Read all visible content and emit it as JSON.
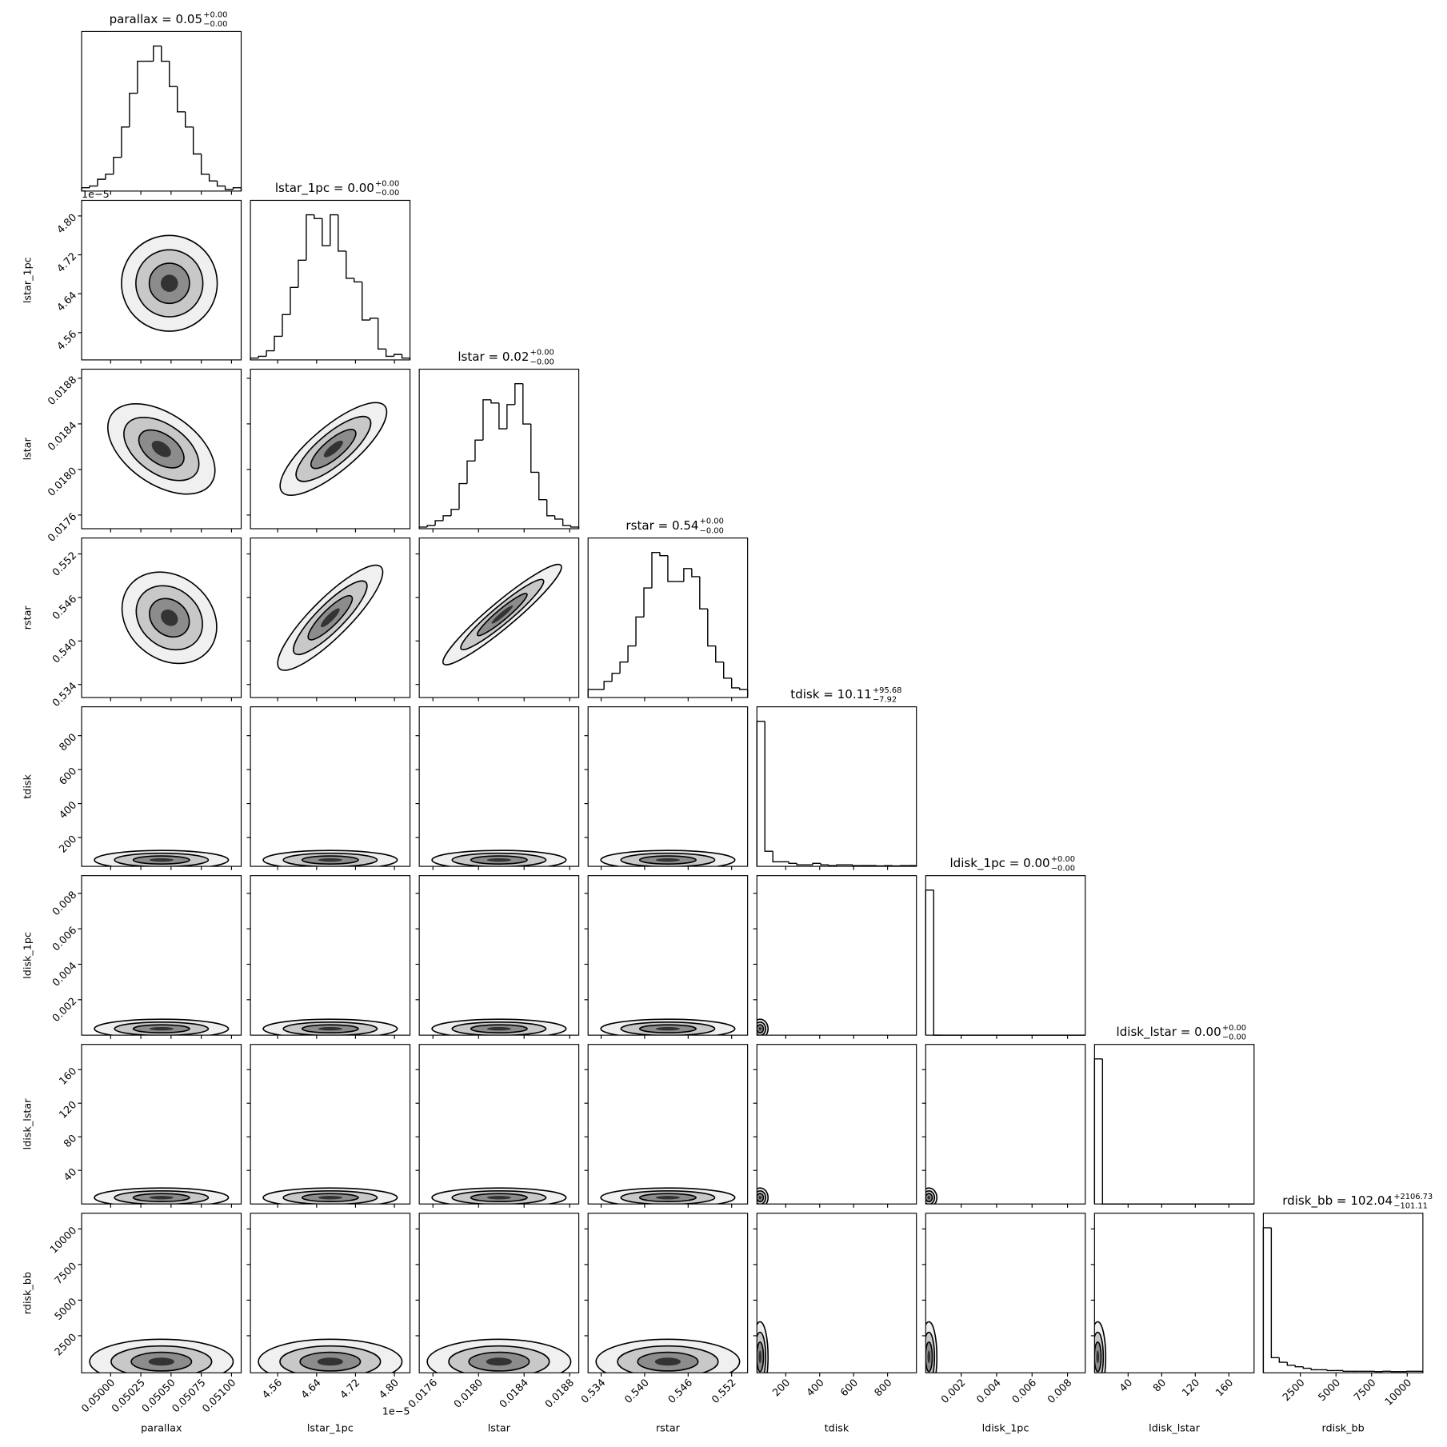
{
  "chart_data": {
    "type": "corner",
    "parameters": [
      {
        "label": "parallax",
        "title": "parallax = 0.05",
        "upper": "+0.00",
        "lower": "−0.00",
        "lim": [
          0.04976,
          0.05108
        ],
        "ticks": [
          {
            "value": 0.05,
            "label": "0.05000"
          },
          0.05025,
          {
            "value": 0.0505,
            "label": "0.05050"
          },
          0.05075,
          {
            "value": 0.051,
            "label": "0.05100"
          }
        ],
        "bins": [
          0.04976,
          0.049826,
          0.049892,
          0.049958,
          0.050024,
          0.05009,
          0.050156,
          0.050222,
          0.050288,
          0.050354,
          0.05042,
          0.050486,
          0.050552,
          0.050618,
          0.050684,
          0.05075,
          0.050816,
          0.050882,
          0.050948,
          0.051014,
          0.05108
        ],
        "counts": [
          2,
          3,
          7,
          10,
          20,
          38,
          58,
          77,
          77,
          86,
          77,
          62,
          47,
          38,
          22,
          10,
          6,
          3,
          1,
          2
        ]
      },
      {
        "label": "lstar_1pc",
        "title": "lstar_1pc = 0.00",
        "upper": "+0.00",
        "lower": "−0.00",
        "offset": "1e−5",
        "lim": [
          4.504,
          4.832
        ],
        "ticks": [
          4.56,
          4.64,
          4.72,
          {
            "value": 4.8,
            "label": "4.80"
          }
        ],
        "bins": [
          4.504,
          4.5204,
          4.5368,
          4.5532,
          4.5696,
          4.586,
          4.6024,
          4.6188,
          4.6352,
          4.6516,
          4.668,
          4.6844,
          4.7008,
          4.7172,
          4.7336,
          4.75,
          4.7664,
          4.7828,
          4.7992,
          4.8156,
          4.832
        ],
        "counts": [
          1,
          2,
          5,
          13,
          25,
          40,
          55,
          80,
          78,
          63,
          80,
          60,
          45,
          43,
          22,
          23,
          6,
          2,
          3,
          1
        ]
      },
      {
        "label": "lstar",
        "title": "lstar = 0.02",
        "upper": "+0.00",
        "lower": "−0.00",
        "lim": [
          0.01748,
          0.01888
        ],
        "ticks": [
          0.0176,
          {
            "value": 0.018,
            "label": "0.0180"
          },
          0.0184,
          0.0188
        ],
        "bins": [
          0.01748,
          0.01755,
          0.01762,
          0.01769,
          0.01776,
          0.01783,
          0.0179,
          0.01797,
          0.01804,
          0.01811,
          0.01818,
          0.01825,
          0.01832,
          0.01839,
          0.01846,
          0.01853,
          0.0186,
          0.01867,
          0.01874,
          0.01881,
          0.01888
        ],
        "counts": [
          1,
          2,
          5,
          8,
          12,
          28,
          42,
          55,
          80,
          78,
          62,
          77,
          90,
          65,
          35,
          18,
          8,
          6,
          2,
          1
        ]
      },
      {
        "label": "rstar",
        "title": "rstar = 0.54",
        "upper": "+0.00",
        "lower": "−0.00",
        "lim": [
          0.5322,
          0.5542
        ],
        "ticks": [
          0.534,
          {
            "value": 0.54,
            "label": "0.540"
          },
          0.546,
          0.552
        ],
        "bins": [
          0.5322,
          0.5333,
          0.5344,
          0.5355,
          0.5366,
          0.5377,
          0.5388,
          0.5399,
          0.541,
          0.5421,
          0.5432,
          0.5443,
          0.5454,
          0.5465,
          0.5476,
          0.5487,
          0.5498,
          0.5509,
          0.552,
          0.5531,
          0.5542
        ],
        "counts": [
          5,
          5,
          10,
          15,
          22,
          32,
          50,
          68,
          90,
          88,
          72,
          72,
          80,
          75,
          55,
          32,
          22,
          12,
          6,
          5
        ]
      },
      {
        "label": "tdisk",
        "title": "tdisk = 10.11",
        "upper": "+95.68",
        "lower": "−7.92",
        "lim": [
          30,
          970
        ],
        "ticks": [
          200,
          400,
          600,
          800
        ],
        "bins": [
          30,
          77,
          124,
          171,
          218,
          265,
          312,
          359,
          406,
          453,
          500,
          547,
          594,
          641,
          688,
          735,
          782,
          829,
          876,
          923,
          970
        ],
        "counts": [
          96,
          10,
          3,
          3,
          2,
          1,
          1,
          2,
          1,
          0.5,
          1,
          1,
          0.5,
          0.5,
          0.5,
          0.3,
          0.5,
          0.3,
          0.5,
          0.5
        ]
      },
      {
        "label": "ldisk_1pc",
        "title": "ldisk_1pc = 0.00",
        "upper": "+0.00",
        "lower": "−0.00",
        "lim": [
          0,
          0.009
        ],
        "ticks": [
          0.002,
          0.004,
          0.006,
          0.008
        ],
        "bins": [
          0,
          0.00045,
          0.0009,
          0.00135,
          0.0018,
          0.00225,
          0.0027,
          0.00315,
          0.0036,
          0.00405,
          0.0045,
          0.00495,
          0.0054,
          0.00585,
          0.0063,
          0.00675,
          0.0072,
          0.00765,
          0.0081,
          0.00855,
          0.009
        ],
        "counts": [
          96,
          0,
          0,
          0,
          0,
          0,
          0,
          0,
          0,
          0,
          0,
          0,
          0,
          0,
          0,
          0,
          0,
          0,
          0,
          0
        ]
      },
      {
        "label": "ldisk_lstar",
        "title": "ldisk_lstar = 0.00",
        "upper": "+0.00",
        "lower": "−0.00",
        "lim": [
          0,
          190
        ],
        "ticks": [
          40,
          80,
          120,
          160
        ],
        "bins": [
          0,
          9.5,
          19,
          28.5,
          38,
          47.5,
          57,
          66.5,
          76,
          85.5,
          95,
          104.5,
          114,
          123.5,
          133,
          142.5,
          152,
          161.5,
          171,
          180.5,
          190
        ],
        "counts": [
          96,
          0,
          0,
          0,
          0,
          0,
          0,
          0,
          0,
          0,
          0,
          0,
          0,
          0,
          0,
          0,
          0,
          0,
          0,
          0
        ]
      },
      {
        "label": "rdisk_bb",
        "title": "rdisk_bb = 102.04",
        "upper": "+2106.73",
        "lower": "−101.11",
        "lim": [
          -100,
          11100
        ],
        "ticks": [
          2500,
          5000,
          7500,
          10000
        ],
        "bins": [
          -100,
          460,
          1020,
          1580,
          2140,
          2700,
          3260,
          3820,
          4380,
          4940,
          5500,
          6060,
          6620,
          7180,
          7740,
          8300,
          8860,
          9420,
          9980,
          10540,
          11100
        ],
        "counts": [
          96,
          10,
          7,
          5,
          4,
          3,
          2,
          2,
          1.5,
          1.5,
          1,
          1,
          1,
          1,
          0.8,
          1,
          0.8,
          0.8,
          1,
          1
        ]
      }
    ]
  }
}
